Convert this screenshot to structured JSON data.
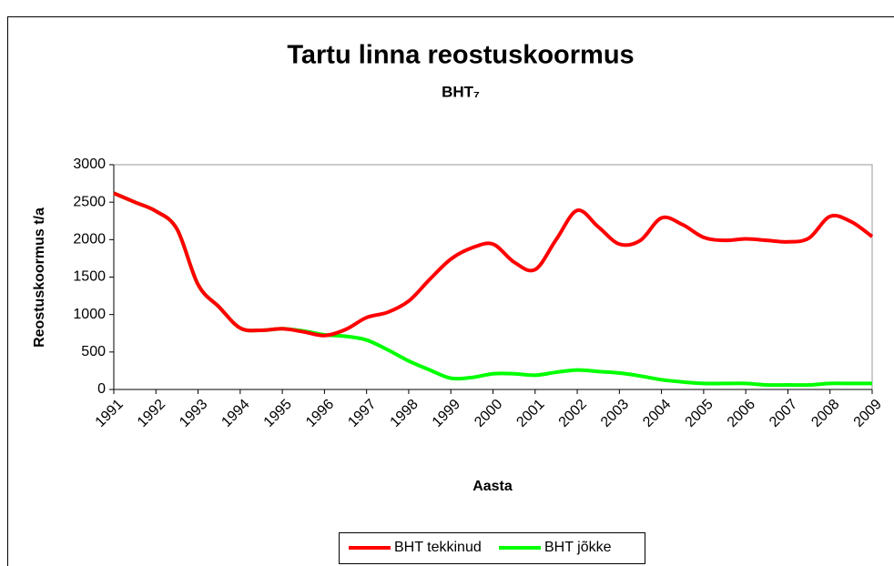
{
  "chart_data": {
    "type": "line",
    "title": "Tartu linna reostuskoormus",
    "subtitle": "BHT₇",
    "x_label": "Aasta",
    "y_label": "Reostuskoormus t/a",
    "x": [
      1991,
      1991.5,
      1992,
      1992.5,
      1993,
      1993.5,
      1994,
      1994.5,
      1995,
      1995.5,
      1996,
      1996.5,
      1997,
      1997.5,
      1998,
      1998.5,
      1999,
      1999.5,
      2000,
      2000.5,
      2001,
      2001.5,
      2002,
      2002.5,
      2003,
      2003.5,
      2004,
      2004.5,
      2005,
      2005.5,
      2006,
      2006.5,
      2007,
      2007.5,
      2008,
      2008.5,
      2009
    ],
    "series": [
      {
        "name": "BHT tekkinud",
        "color": "#ff0000",
        "values": [
          2620,
          2500,
          2380,
          2140,
          1400,
          1100,
          820,
          790,
          810,
          770,
          720,
          800,
          960,
          1030,
          1180,
          1470,
          1740,
          1890,
          1940,
          1700,
          1600,
          2000,
          2390,
          2170,
          1940,
          1990,
          2290,
          2200,
          2030,
          1990,
          2010,
          1990,
          1970,
          2020,
          2310,
          2240,
          2040
        ]
      },
      {
        "name": "BHT jõkke",
        "color": "#00ff00",
        "values": [
          2620,
          2500,
          2380,
          2140,
          1400,
          1100,
          820,
          790,
          810,
          780,
          730,
          710,
          660,
          530,
          380,
          260,
          150,
          160,
          210,
          210,
          190,
          230,
          260,
          240,
          220,
          180,
          130,
          100,
          80,
          80,
          80,
          60,
          60,
          60,
          80,
          80,
          80
        ]
      }
    ],
    "xlim": [
      1991,
      2009
    ],
    "xticks": [
      1991,
      1992,
      1993,
      1994,
      1995,
      1996,
      1997,
      1998,
      1999,
      2000,
      2001,
      2002,
      2003,
      2004,
      2005,
      2006,
      2007,
      2008,
      2009
    ],
    "ylim": [
      0,
      3000
    ],
    "yticks": [
      0,
      500,
      1000,
      1500,
      2000,
      2500,
      3000
    ],
    "grid": false,
    "legend": "bottom"
  }
}
